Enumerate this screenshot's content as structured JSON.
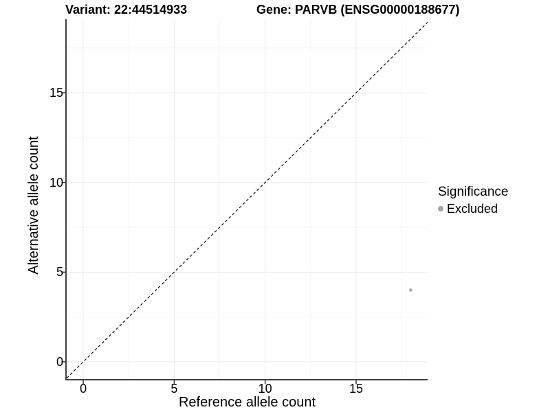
{
  "header": {
    "variant_title": "Variant: 22:44514933",
    "gene_title": "Gene: PARVB (ENSG00000188677)"
  },
  "axes": {
    "x_label": "Reference allele count",
    "y_label": "Alternative allele count"
  },
  "legend": {
    "title": "Significance",
    "items": [
      {
        "label": "Excluded",
        "color": "#a6a6a6"
      }
    ]
  },
  "style": {
    "background": "#ffffff",
    "axis_line_color": "#404040",
    "tick_mark_color": "#333333",
    "grid_major_color": "#ebebeb",
    "grid_minor_color": "#f5f5f5",
    "reference_line_color": "#000000",
    "point_color": "#adadad",
    "text_color": "#000000"
  },
  "chart_data": {
    "type": "scatter",
    "title": "Variant: 22:44514933    Gene: PARVB (ENSG00000188677)",
    "xlabel": "Reference allele count",
    "ylabel": "Alternative allele count",
    "xlim": [
      -0.91,
      18.93
    ],
    "ylim": [
      -0.96,
      19.1
    ],
    "x_ticks": [
      0,
      5,
      10,
      15
    ],
    "y_ticks": [
      0,
      5,
      10,
      15
    ],
    "x_minor_ticks": [
      2.5,
      7.5,
      12.5,
      17.5
    ],
    "y_minor_ticks": [
      2.5,
      7.5,
      12.5,
      17.5
    ],
    "grid": true,
    "legend_position": "right",
    "series": [
      {
        "name": "Excluded",
        "color": "#adadad",
        "point_radius": 2.4,
        "points": [
          {
            "x": 18,
            "y": 4
          }
        ]
      }
    ],
    "reference_line": {
      "kind": "identity y=x",
      "slope": 1,
      "intercept": 0,
      "style": "dashed",
      "color": "#000000"
    }
  }
}
